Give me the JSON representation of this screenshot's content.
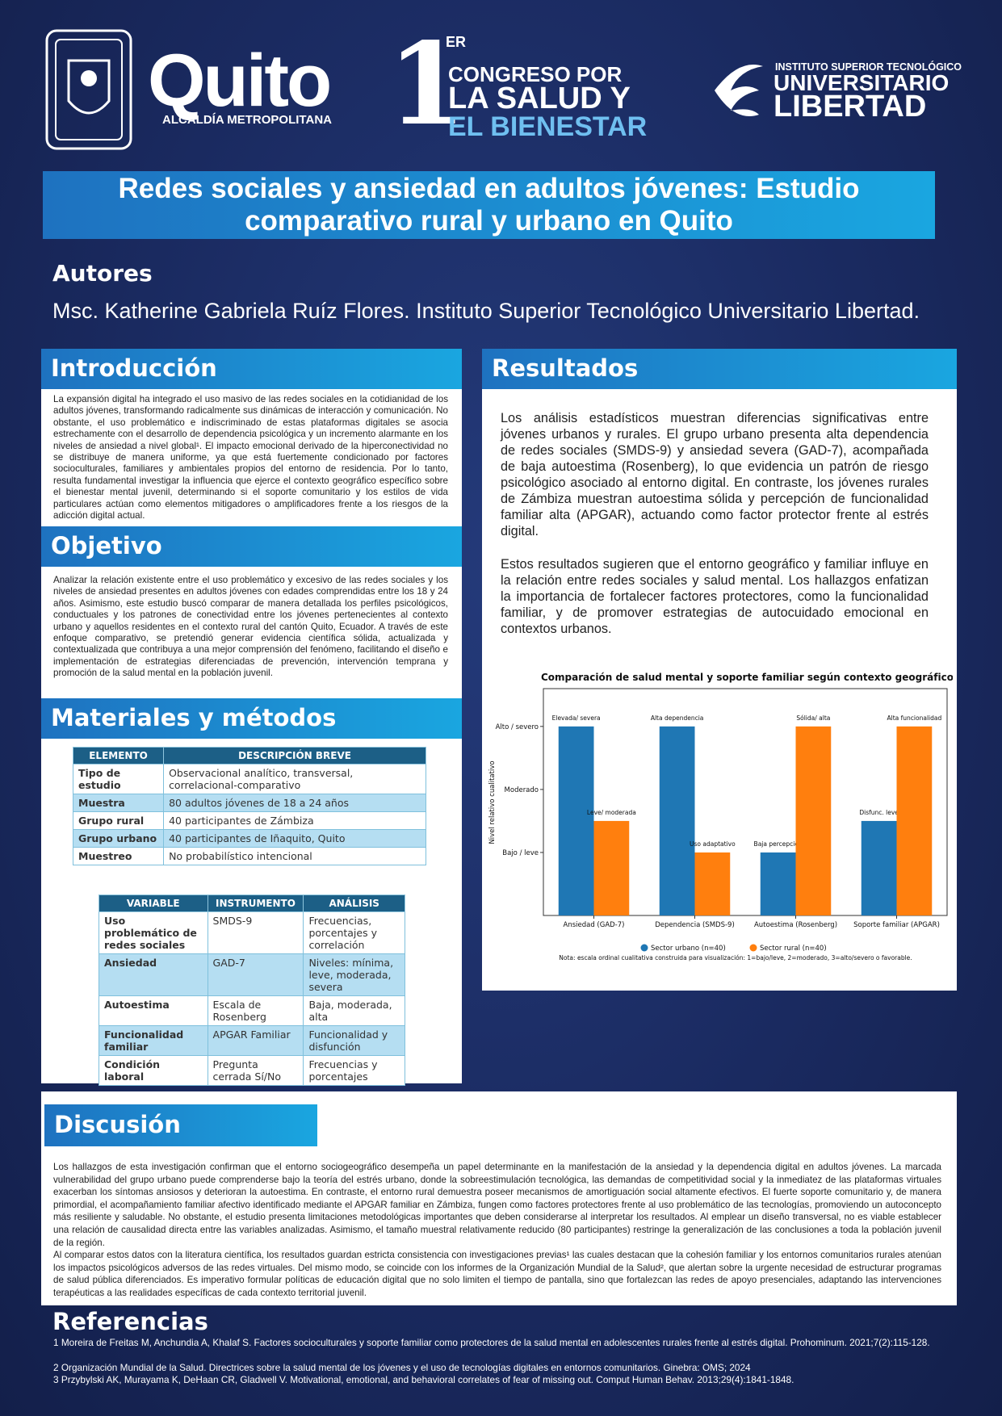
{
  "header": {
    "quito": "Quito",
    "alcaldia": "ALCALDÍA METROPOLITANA",
    "congreso_num": "1",
    "congreso_sup": "ER",
    "congreso_lines": [
      "CONGRESO POR",
      "LA SALUD Y",
      "EL BIENESTAR"
    ],
    "instituto_lines": [
      "INSTITUTO SUPERIOR TECNOLÓGICO",
      "UNIVERSITARIO",
      "LIBERTAD"
    ]
  },
  "title": "Redes sociales y ansiedad en adultos jóvenes: Estudio comparativo rural y urbano en Quito",
  "authors": {
    "heading": "Autores",
    "text": "Msc. Katherine Gabriela Ruíz Flores. Instituto Superior Tecnológico Universitario Libertad."
  },
  "introduccion": {
    "heading": "Introducción",
    "text": "La expansión digital ha integrado el uso masivo de las redes sociales en la cotidianidad de los adultos jóvenes, transformando radicalmente sus dinámicas de interacción y comunicación. No obstante, el uso problemático e indiscriminado de estas plataformas digitales se asocia estrechamente con el desarrollo de dependencia psicológica y un incremento alarmante en los niveles de ansiedad a nivel global¹. El impacto emocional derivado de la hiperconectividad no se distribuye de manera uniforme, ya que está fuertemente condicionado por factores socioculturales, familiares y ambientales propios del entorno de residencia. Por lo tanto, resulta fundamental investigar la influencia que ejerce el contexto geográfico específico sobre el bienestar mental juvenil, determinando si el soporte comunitario y los estilos de vida particulares actúan como elementos mitigadores o amplificadores frente a los riesgos de la adicción digital actual."
  },
  "objetivo": {
    "heading": "Objetivo",
    "text": "Analizar la relación existente entre el uso problemático y excesivo de las redes sociales y los niveles de ansiedad presentes en adultos jóvenes con edades comprendidas entre los 18 y 24 años. Asimismo, este estudio buscó comparar de manera detallada los perfiles psicológicos, conductuales y los patrones de conectividad entre los jóvenes pertenecientes al contexto urbano y aquellos residentes en el contexto rural del cantón Quito, Ecuador. A través de este enfoque comparativo, se pretendió generar evidencia científica sólida, actualizada y contextualizada que contribuya a una mejor comprensión del fenómeno, facilitando el diseño e implementación de estrategias diferenciadas de prevención, intervención temprana y promoción de la salud mental en la población juvenil."
  },
  "materiales": {
    "heading": "Materiales y métodos",
    "table1": {
      "header": [
        "ELEMENTO",
        "DESCRIPCIÓN BREVE"
      ],
      "rows": [
        [
          "Tipo de estudio",
          "Observacional analítico, transversal, correlacional-comparativo"
        ],
        [
          "Muestra",
          "80 adultos jóvenes de 18 a 24 años"
        ],
        [
          "Grupo rural",
          "40 participantes de Zámbiza"
        ],
        [
          "Grupo urbano",
          "40 participantes de Iñaquito, Quito"
        ],
        [
          "Muestreo",
          "No probabilístico intencional"
        ]
      ]
    },
    "table2": {
      "header": [
        "VARIABLE",
        "INSTRUMENTO",
        "ANÁLISIS"
      ],
      "rows": [
        [
          "Uso problemático de redes sociales",
          "SMDS-9",
          "Frecuencias, porcentajes y correlación"
        ],
        [
          "Ansiedad",
          "GAD-7",
          "Niveles: mínima, leve, moderada, severa"
        ],
        [
          "Autoestima",
          "Escala de Rosenberg",
          "Baja, moderada, alta"
        ],
        [
          "Funcionalidad familiar",
          "APGAR Familiar",
          "Funcionalidad y disfunción"
        ],
        [
          "Condición laboral",
          "Pregunta cerrada Sí/No",
          "Frecuencias y porcentajes"
        ]
      ]
    }
  },
  "resultados": {
    "heading": "Resultados",
    "paragraphs": [
      "Los análisis estadísticos muestran diferencias significativas entre jóvenes urbanos y rurales. El grupo urbano presenta alta dependencia de redes sociales (SMDS-9) y ansiedad severa (GAD-7), acompañada de baja autoestima (Rosenberg), lo que evidencia un patrón de riesgo psicológico asociado al entorno digital. En contraste, los jóvenes rurales de Zámbiza muestran autoestima sólida y percepción de funcionalidad familiar alta (APGAR), actuando como factor protector frente al estrés digital.",
      "Estos resultados sugieren que el entorno geográfico y familiar influye en la relación entre redes sociales y salud mental. Los hallazgos enfatizan la importancia de fortalecer factores protectores, como la funcionalidad familiar, y de promover estrategias de autocuidado emocional en contextos urbanos."
    ]
  },
  "chart_data": {
    "type": "bar",
    "title": "Comparación de salud mental y soporte familiar según contexto geográfico",
    "y_label": "Nivel relativo cualitativo",
    "categories": [
      "Ansiedad (GAD-7)",
      "Dependencia (SMDS-9)",
      "Autoestima (Rosenberg)",
      "Soporte familiar (APGAR)"
    ],
    "series": [
      {
        "name": "Sector urbano (n=40)",
        "color": "#1f77b4",
        "values": [
          3,
          3,
          1,
          1.5
        ],
        "bar_labels": [
          "Elevada/ severa",
          "Alta dependencia",
          "Baja percepción",
          "Disfunc. leve"
        ]
      },
      {
        "name": "Sector rural (n=40)",
        "color": "#ff7f0e",
        "values": [
          1.5,
          1,
          3,
          3
        ],
        "bar_labels": [
          "Leve/ moderada",
          "Uso adaptativo",
          "Sólida/ alta",
          "Alta funcionalidad"
        ]
      }
    ],
    "ylim": [
      0,
      3.6
    ],
    "yticks": [
      {
        "value": 1,
        "label": "Bajo / leve"
      },
      {
        "value": 2,
        "label": "Moderado"
      },
      {
        "value": 3,
        "label": "Alto / severo"
      }
    ],
    "note": "Nota: escala ordinal cualitativa construida para visualización: 1=bajo/leve, 2=moderado, 3=alto/severo o favorable."
  },
  "discusion": {
    "heading": "Discusión",
    "paragraphs": [
      "Los hallazgos de esta investigación confirman que el entorno sociogeográfico desempeña un papel determinante en la manifestación de la ansiedad y la dependencia digital en adultos jóvenes. La marcada vulnerabilidad del grupo urbano puede comprenderse bajo la teoría del estrés urbano, donde la sobreestimulación tecnológica, las demandas de competitividad social y la inmediatez de las plataformas virtuales exacerban los síntomas ansiosos y deterioran la autoestima. En contraste, el entorno rural demuestra poseer mecanismos de amortiguación social altamente efectivos. El fuerte soporte comunitario y, de manera primordial, el acompañamiento familiar afectivo identificado mediante el APGAR familiar en Zámbiza, fungen como factores protectores frente al uso problemático de las tecnologías, promoviendo un autoconcepto más resiliente y saludable. No obstante, el estudio presenta limitaciones metodológicas importantes que deben considerarse al interpretar los resultados. Al emplear un diseño transversal, no es viable establecer una relación de causalidad directa entre las variables analizadas. Asimismo, el tamaño muestral relativamente reducido (80 participantes) restringe la generalización de las conclusiones a toda la población juvenil de la región.",
      "Al comparar estos datos con la literatura científica, los resultados guardan estricta consistencia con investigaciones previas¹ las cuales destacan que la cohesión familiar y los entornos comunitarios rurales atenúan los impactos psicológicos adversos de las redes virtuales. Del mismo modo, se coincide con los informes de la Organización Mundial de la Salud², que alertan sobre la urgente necesidad de estructurar programas de salud pública diferenciados. Es imperativo formular políticas de educación digital que no solo limiten el tiempo de pantalla, sino que fortalezcan las redes de apoyo presenciales, adaptando las intervenciones terapéuticas a las realidades específicas de cada contexto territorial juvenil."
    ]
  },
  "referencias": {
    "heading": "Referencias",
    "items": [
      "1 Moreira de Freitas M, Anchundia A, Khalaf S. Factores socioculturales y soporte familiar como protectores de la salud mental en adolescentes rurales frente al estrés digital. Prohominum. 2021;7(2):115-128.",
      "2 Organización Mundial de la Salud. Directrices sobre la salud mental de los jóvenes y el uso de tecnologías digitales en entornos comunitarios. Ginebra: OMS; 2024",
      "3 Przybylski AK, Murayama K, DeHaan CR, Gladwell V. Motivational, emotional, and behavioral correlates of fear of missing out. Comput Human Behav. 2013;29(4):1841-1848."
    ]
  }
}
